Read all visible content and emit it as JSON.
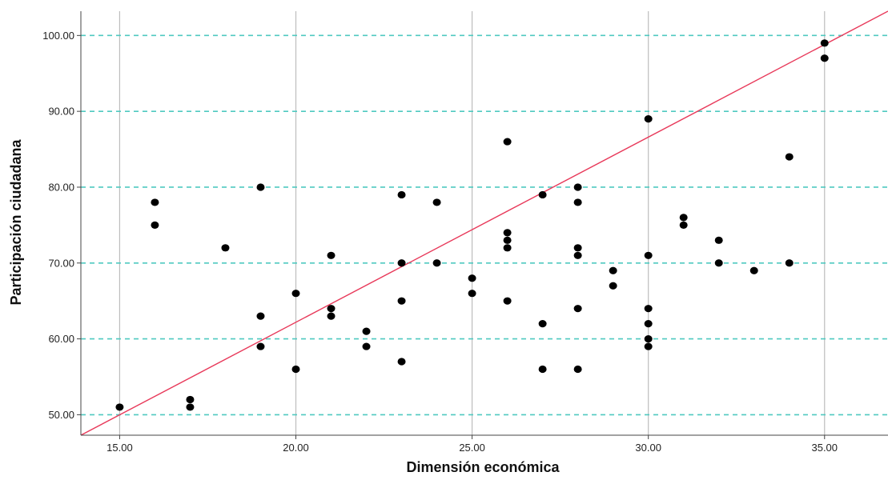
{
  "chart_data": {
    "type": "scatter",
    "title": "",
    "xlabel": "Dimensión económica",
    "ylabel": "Participación ciudadana",
    "xlim": [
      13.9,
      36.8
    ],
    "ylim": [
      47.3,
      103.2
    ],
    "x_ticks": [
      15,
      20,
      25,
      30,
      35
    ],
    "x_tick_labels": [
      "15.00",
      "20.00",
      "25.00",
      "30.00",
      "35.00"
    ],
    "y_ticks": [
      50,
      60,
      70,
      80,
      90,
      100
    ],
    "y_tick_labels": [
      "50.00",
      "60.00",
      "70.00",
      "80.00",
      "90.00",
      "100.00"
    ],
    "grid": {
      "x": "solid gray vertical at x ticks",
      "y": "dashed teal horizontal at y ticks"
    },
    "marker_color": "#000000",
    "vertical_grid_color": "#bdbdbd",
    "horizontal_grid_color": "#4fc9c0",
    "reference_line": {
      "color": "#e8395a",
      "from": [
        13.9,
        47.3
      ],
      "to": [
        36.8,
        103.2
      ]
    },
    "points": [
      [
        15,
        51
      ],
      [
        16,
        78
      ],
      [
        16,
        75
      ],
      [
        17,
        52
      ],
      [
        17,
        51
      ],
      [
        18,
        72
      ],
      [
        19,
        80
      ],
      [
        19,
        63
      ],
      [
        19,
        59
      ],
      [
        20,
        66
      ],
      [
        20,
        56
      ],
      [
        21,
        71
      ],
      [
        21,
        64
      ],
      [
        21,
        63
      ],
      [
        22,
        61
      ],
      [
        22,
        59
      ],
      [
        23,
        79
      ],
      [
        23,
        70
      ],
      [
        23,
        65
      ],
      [
        23,
        57
      ],
      [
        24,
        78
      ],
      [
        24,
        70
      ],
      [
        25,
        68
      ],
      [
        25,
        66
      ],
      [
        26,
        86
      ],
      [
        26,
        74
      ],
      [
        26,
        73
      ],
      [
        26,
        72
      ],
      [
        26,
        65
      ],
      [
        27,
        79
      ],
      [
        27,
        62
      ],
      [
        27,
        56
      ],
      [
        28,
        80
      ],
      [
        28,
        78
      ],
      [
        28,
        72
      ],
      [
        28,
        71
      ],
      [
        28,
        64
      ],
      [
        28,
        56
      ],
      [
        29,
        69
      ],
      [
        29,
        67
      ],
      [
        30,
        89
      ],
      [
        30,
        71
      ],
      [
        30,
        64
      ],
      [
        30,
        62
      ],
      [
        30,
        60
      ],
      [
        30,
        59
      ],
      [
        31,
        76
      ],
      [
        31,
        75
      ],
      [
        32,
        73
      ],
      [
        32,
        70
      ],
      [
        33,
        69
      ],
      [
        34,
        84
      ],
      [
        34,
        70
      ],
      [
        35,
        99
      ],
      [
        35,
        97
      ]
    ]
  }
}
